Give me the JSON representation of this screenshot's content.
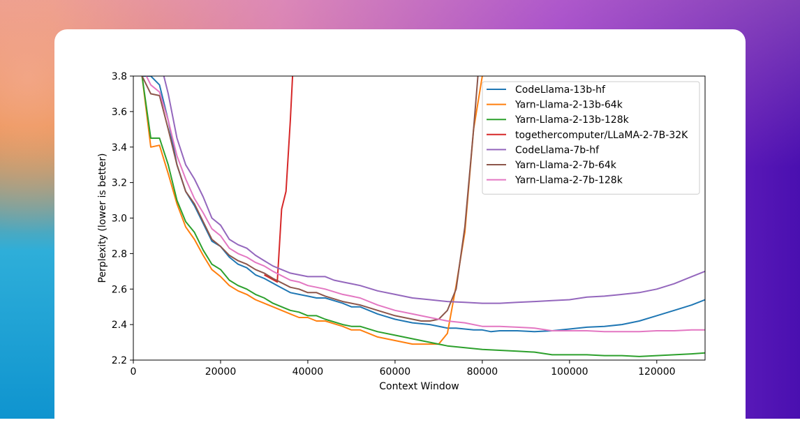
{
  "chart_data": {
    "type": "line",
    "xlabel": "Context Window",
    "ylabel": "Perplexity (lower is better)",
    "xlim": [
      0,
      131072
    ],
    "ylim": [
      2.2,
      3.8
    ],
    "xticks": [
      0,
      20000,
      40000,
      60000,
      80000,
      100000,
      120000
    ],
    "yticks": [
      2.2,
      2.4,
      2.6,
      2.8,
      3.0,
      3.2,
      3.4,
      3.6,
      3.8
    ],
    "legend_position": "top-right",
    "grid": false,
    "series": [
      {
        "name": "CodeLlama-13b-hf",
        "color": "#1f77b4",
        "x": [
          2000,
          4000,
          6000,
          8000,
          10000,
          12000,
          14000,
          16000,
          18000,
          20000,
          22000,
          24000,
          26000,
          28000,
          30000,
          33000,
          36000,
          38000,
          40000,
          42000,
          44000,
          48000,
          50000,
          52000,
          56000,
          60000,
          64000,
          68000,
          72000,
          74000,
          78000,
          80000,
          82000,
          84000,
          88000,
          92000,
          96000,
          100000,
          104000,
          108000,
          112000,
          116000,
          120000,
          124000,
          128000,
          131072
        ],
        "y": [
          3.8,
          3.8,
          3.75,
          3.55,
          3.3,
          3.15,
          3.07,
          2.97,
          2.87,
          2.84,
          2.78,
          2.74,
          2.72,
          2.68,
          2.66,
          2.62,
          2.58,
          2.57,
          2.56,
          2.55,
          2.55,
          2.52,
          2.5,
          2.5,
          2.46,
          2.43,
          2.41,
          2.4,
          2.38,
          2.38,
          2.37,
          2.37,
          2.36,
          2.365,
          2.365,
          2.36,
          2.365,
          2.375,
          2.385,
          2.39,
          2.4,
          2.42,
          2.45,
          2.48,
          2.51,
          2.54
        ]
      },
      {
        "name": "Yarn-Llama-2-13b-64k",
        "color": "#ff7f0e",
        "x": [
          2000,
          4000,
          6000,
          8000,
          10000,
          12000,
          14000,
          16000,
          18000,
          20000,
          22000,
          24000,
          26000,
          28000,
          30000,
          32000,
          36000,
          38000,
          40000,
          42000,
          44000,
          48000,
          50000,
          52000,
          56000,
          60000,
          64000,
          68000,
          70000,
          72000,
          74000,
          76000,
          78000,
          80000
        ],
        "y": [
          3.8,
          3.4,
          3.41,
          3.25,
          3.08,
          2.95,
          2.88,
          2.79,
          2.71,
          2.67,
          2.62,
          2.59,
          2.57,
          2.54,
          2.52,
          2.5,
          2.46,
          2.44,
          2.44,
          2.42,
          2.42,
          2.39,
          2.37,
          2.37,
          2.33,
          2.31,
          2.29,
          2.29,
          2.29,
          2.35,
          2.62,
          2.92,
          3.5,
          3.8
        ]
      },
      {
        "name": "Yarn-Llama-2-13b-128k",
        "color": "#2ca02c",
        "x": [
          2000,
          4000,
          6000,
          8000,
          10000,
          12000,
          14000,
          16000,
          18000,
          20000,
          22000,
          24000,
          26000,
          28000,
          30000,
          32000,
          36000,
          38000,
          40000,
          42000,
          44000,
          48000,
          50000,
          52000,
          56000,
          60000,
          64000,
          68000,
          72000,
          76000,
          80000,
          84000,
          88000,
          92000,
          96000,
          100000,
          104000,
          108000,
          112000,
          116000,
          120000,
          124000,
          128000,
          131072
        ],
        "y": [
          3.8,
          3.45,
          3.45,
          3.3,
          3.1,
          2.98,
          2.92,
          2.82,
          2.74,
          2.71,
          2.65,
          2.62,
          2.6,
          2.57,
          2.55,
          2.52,
          2.48,
          2.47,
          2.45,
          2.45,
          2.43,
          2.4,
          2.39,
          2.39,
          2.36,
          2.34,
          2.32,
          2.3,
          2.28,
          2.27,
          2.26,
          2.255,
          2.25,
          2.245,
          2.23,
          2.23,
          2.23,
          2.225,
          2.225,
          2.22,
          2.225,
          2.23,
          2.235,
          2.24
        ]
      },
      {
        "name": "togethercomputer/LLaMA-2-7B-32K",
        "color": "#d62728",
        "x": [
          30000,
          33000,
          34000,
          35000,
          36000,
          36500
        ],
        "y": [
          2.68,
          2.64,
          3.05,
          3.15,
          3.55,
          3.8
        ]
      },
      {
        "name": "CodeLlama-7b-hf",
        "color": "#9467bd",
        "x": [
          7000,
          8000,
          10000,
          12000,
          14000,
          16000,
          18000,
          20000,
          22000,
          24000,
          26000,
          28000,
          30000,
          32000,
          34000,
          36000,
          38000,
          40000,
          42000,
          44000,
          46000,
          48000,
          50000,
          52000,
          56000,
          60000,
          64000,
          68000,
          72000,
          76000,
          80000,
          84000,
          88000,
          92000,
          96000,
          100000,
          104000,
          108000,
          112000,
          116000,
          120000,
          124000,
          128000,
          131072
        ],
        "y": [
          3.8,
          3.7,
          3.45,
          3.3,
          3.22,
          3.12,
          3.0,
          2.96,
          2.88,
          2.85,
          2.83,
          2.79,
          2.76,
          2.73,
          2.71,
          2.69,
          2.68,
          2.67,
          2.67,
          2.67,
          2.65,
          2.64,
          2.63,
          2.62,
          2.59,
          2.57,
          2.55,
          2.54,
          2.53,
          2.525,
          2.52,
          2.52,
          2.525,
          2.53,
          2.535,
          2.54,
          2.555,
          2.56,
          2.57,
          2.58,
          2.6,
          2.63,
          2.67,
          2.7
        ]
      },
      {
        "name": "Yarn-Llama-2-7b-64k",
        "color": "#8c564b",
        "x": [
          2000,
          4000,
          6000,
          8000,
          10000,
          12000,
          14000,
          16000,
          18000,
          20000,
          22000,
          24000,
          26000,
          28000,
          30000,
          32000,
          36000,
          38000,
          40000,
          42000,
          44000,
          48000,
          50000,
          52000,
          56000,
          60000,
          64000,
          66000,
          68000,
          70000,
          72000,
          74000,
          76000,
          78000,
          79000
        ],
        "y": [
          3.8,
          3.7,
          3.69,
          3.5,
          3.3,
          3.15,
          3.08,
          2.98,
          2.88,
          2.84,
          2.79,
          2.76,
          2.74,
          2.71,
          2.69,
          2.66,
          2.61,
          2.6,
          2.58,
          2.58,
          2.56,
          2.53,
          2.52,
          2.51,
          2.48,
          2.45,
          2.43,
          2.42,
          2.42,
          2.43,
          2.48,
          2.6,
          2.95,
          3.5,
          3.8
        ]
      },
      {
        "name": "Yarn-Llama-2-7b-128k",
        "color": "#e377c2",
        "x": [
          3000,
          4000,
          6000,
          8000,
          10000,
          12000,
          14000,
          16000,
          18000,
          20000,
          22000,
          24000,
          26000,
          28000,
          30000,
          32000,
          36000,
          38000,
          40000,
          42000,
          44000,
          48000,
          50000,
          52000,
          56000,
          60000,
          64000,
          68000,
          72000,
          76000,
          80000,
          84000,
          88000,
          92000,
          96000,
          100000,
          104000,
          108000,
          112000,
          116000,
          120000,
          124000,
          128000,
          131072
        ],
        "y": [
          3.8,
          3.75,
          3.71,
          3.55,
          3.35,
          3.22,
          3.11,
          3.03,
          2.94,
          2.9,
          2.83,
          2.8,
          2.78,
          2.75,
          2.73,
          2.7,
          2.65,
          2.64,
          2.62,
          2.61,
          2.6,
          2.57,
          2.56,
          2.55,
          2.51,
          2.48,
          2.46,
          2.44,
          2.42,
          2.41,
          2.39,
          2.39,
          2.385,
          2.38,
          2.365,
          2.365,
          2.365,
          2.36,
          2.36,
          2.36,
          2.365,
          2.365,
          2.37,
          2.37
        ]
      }
    ]
  }
}
